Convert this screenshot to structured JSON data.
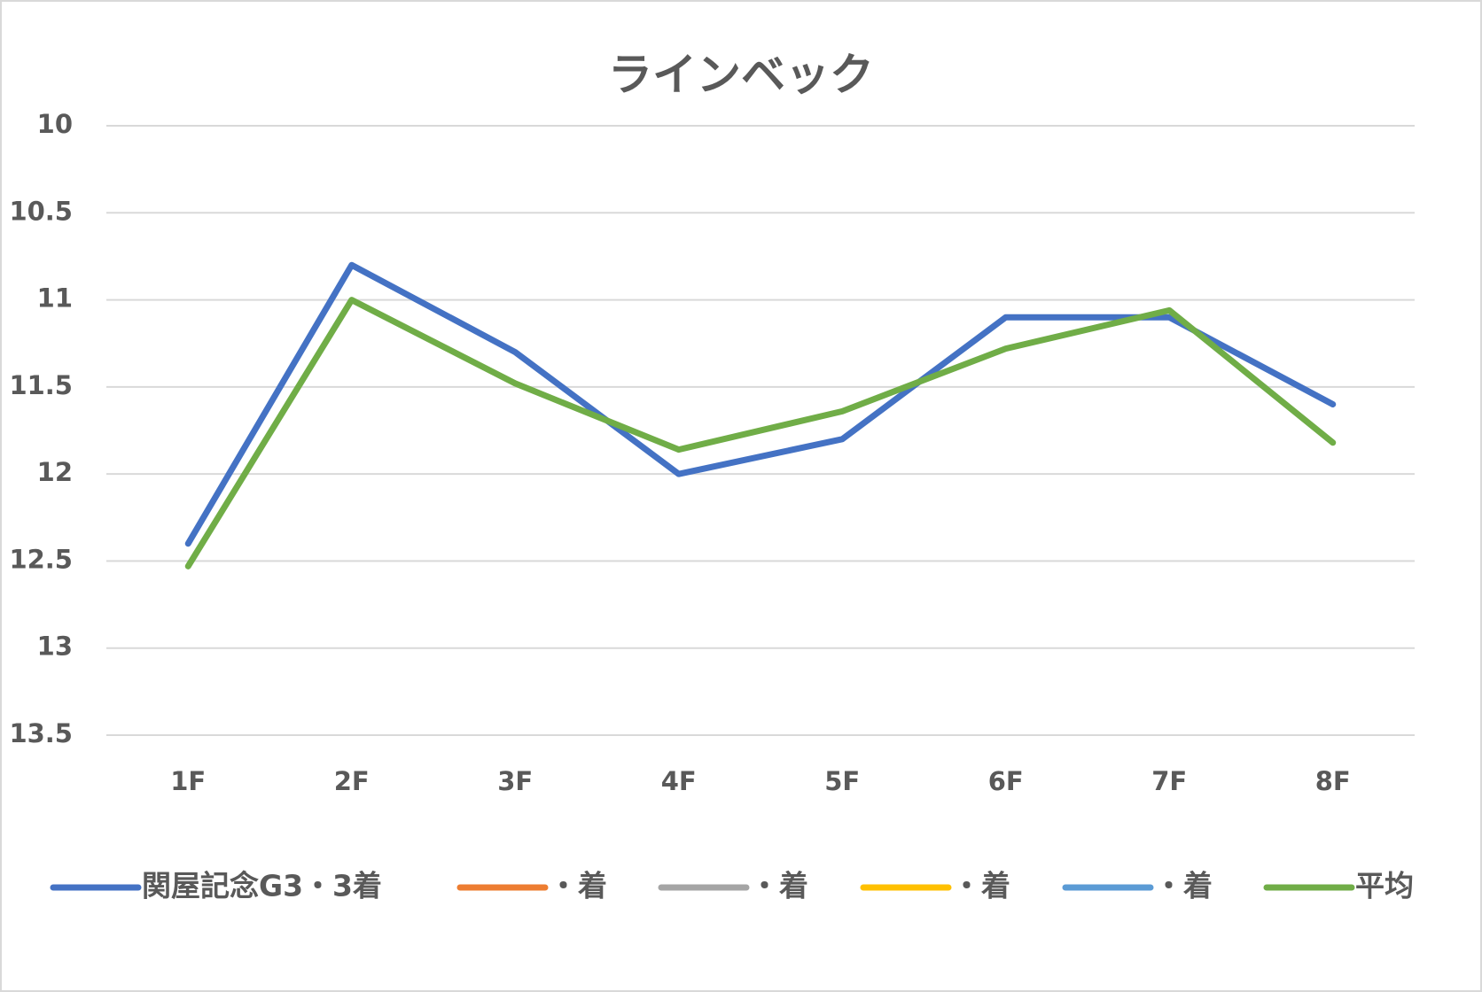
{
  "chart_data": {
    "type": "line",
    "title": "ラインベック",
    "categories": [
      "1F",
      "2F",
      "3F",
      "4F",
      "5F",
      "6F",
      "7F",
      "8F"
    ],
    "series": [
      {
        "name": "関屋記念G3・3着",
        "color": "#4472c4",
        "values": [
          12.4,
          10.8,
          11.3,
          12.0,
          11.8,
          11.1,
          11.1,
          11.6
        ]
      },
      {
        "name": "・着",
        "color": "#ed7d31",
        "values": [
          null,
          null,
          null,
          null,
          null,
          null,
          null,
          null
        ]
      },
      {
        "name": "・着",
        "color": "#a5a5a5",
        "values": [
          null,
          null,
          null,
          null,
          null,
          null,
          null,
          null
        ]
      },
      {
        "name": "・着",
        "color": "#ffc000",
        "values": [
          null,
          null,
          null,
          null,
          null,
          null,
          null,
          null
        ]
      },
      {
        "name": "・着",
        "color": "#5b9bd5",
        "values": [
          null,
          null,
          null,
          null,
          null,
          null,
          null,
          null
        ]
      },
      {
        "name": "平均",
        "color": "#70ad47",
        "values": [
          12.53,
          11.0,
          11.48,
          11.86,
          11.64,
          11.28,
          11.06,
          11.82
        ]
      }
    ],
    "ylim": [
      10,
      13.5
    ],
    "yticks": [
      10,
      10.5,
      11,
      11.5,
      12,
      12.5,
      13,
      13.5
    ],
    "y_inverted": true,
    "grid": true,
    "legend": "bottom"
  }
}
